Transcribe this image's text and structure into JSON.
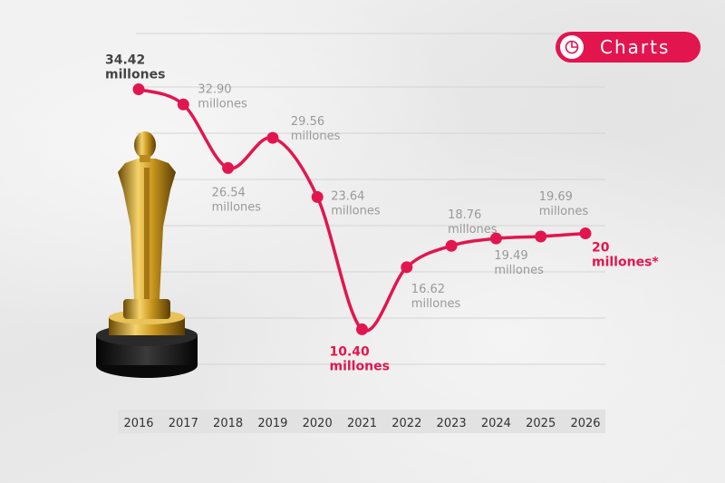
{
  "badge": {
    "label": "Charts",
    "icon": "pie-chart-icon",
    "color": "#e2154f"
  },
  "colors": {
    "line": "#e2154f",
    "text_muted": "#999999",
    "text_dark": "#444444",
    "highlight": "#e2154f"
  },
  "chart_data": {
    "type": "line",
    "x": [
      "2016",
      "2017",
      "2018",
      "2019",
      "2020",
      "2021",
      "2022",
      "2023",
      "2024",
      "2025",
      "2026"
    ],
    "series": [
      {
        "values": [
          34.42,
          32.9,
          26.54,
          29.56,
          23.64,
          10.4,
          16.62,
          18.76,
          19.49,
          19.69,
          20
        ]
      }
    ],
    "data_labels": [
      "34.42 millones",
      "32.90 millones",
      "26.54 millones",
      "29.56 millones",
      "23.64 millones",
      "10.40 millones",
      "16.62 millones",
      "18.76 millones",
      "19.49 millones",
      "19.69 millones",
      "20 millones*"
    ],
    "highlighted_labels": [
      "2016",
      "2021",
      "2026"
    ],
    "grid": true,
    "ylim": [
      4,
      40
    ]
  }
}
